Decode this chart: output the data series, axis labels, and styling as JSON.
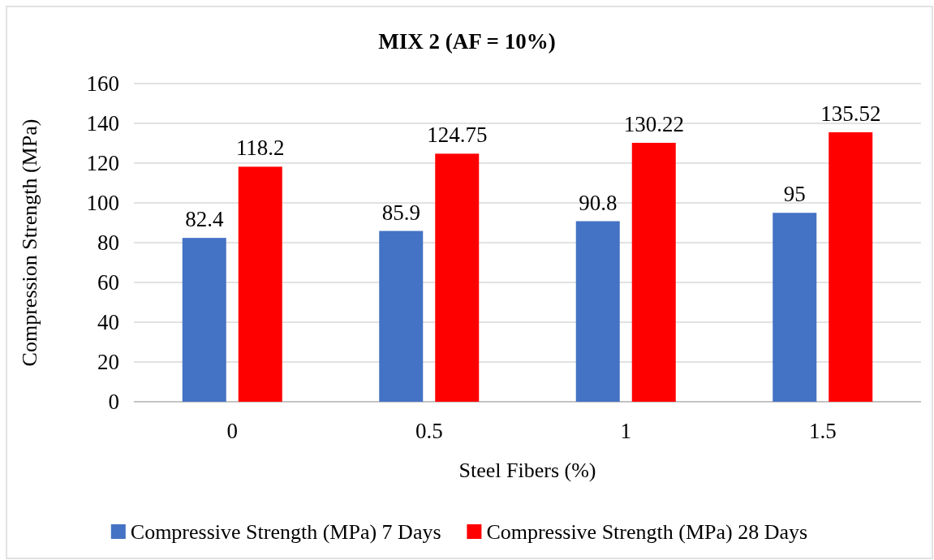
{
  "chart_data": {
    "type": "bar",
    "title": "MIX 2 (AF = 10%)",
    "xlabel": "Steel Fibers (%)",
    "ylabel": "Compression Strength (MPa)",
    "categories": [
      "0",
      "0.5",
      "1",
      "1.5"
    ],
    "series": [
      {
        "name": "Compressive Strength (MPa) 7 Days",
        "color": "#4472c4",
        "values": [
          82.4,
          85.9,
          90.8,
          95
        ]
      },
      {
        "name": "Compressive Strength (MPa) 28 Days",
        "color": "#ff0000",
        "values": [
          118.2,
          124.75,
          130.22,
          135.52
        ]
      }
    ],
    "ylim": [
      0,
      160
    ],
    "yticks": [
      0,
      20,
      40,
      60,
      80,
      100,
      120,
      140,
      160
    ],
    "grid": "y",
    "legend": "bottom",
    "data_labels": true
  }
}
